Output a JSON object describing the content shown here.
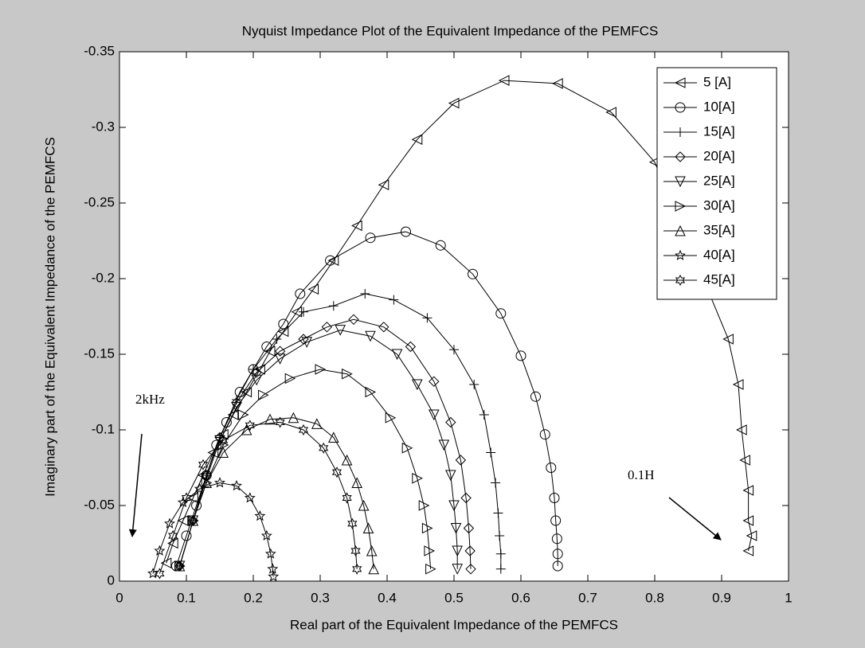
{
  "chart_data": {
    "type": "line",
    "title": "Nyquist Impedance Plot of the Equivalent Impedance of the PEMFCS",
    "x_label": "Real part of the Equivalent Impedance of the PEMFCS",
    "y_label": "Imaginary part of the Equivalent Impedance of the PEMFCS",
    "xlim": [
      0,
      1
    ],
    "ylim": [
      0,
      -0.35
    ],
    "xticks": [
      0,
      0.1,
      0.2,
      0.3,
      0.4,
      0.5,
      0.6,
      0.7,
      0.8,
      0.9,
      1
    ],
    "yticks": [
      0,
      -0.05,
      -0.1,
      -0.15,
      -0.2,
      -0.25,
      -0.3,
      -0.35
    ],
    "grid": false,
    "legend": "upper right",
    "annotations": [
      "2kHz",
      "0.1H"
    ],
    "series": [
      {
        "name": "5 [A]",
        "color": "#000000",
        "marker": "<",
        "x": [
          0.07,
          0.08,
          0.095,
          0.11,
          0.125,
          0.14,
          0.155,
          0.17,
          0.19,
          0.21,
          0.225,
          0.245,
          0.265,
          0.29,
          0.32,
          0.355,
          0.395,
          0.445,
          0.5,
          0.575,
          0.655,
          0.735,
          0.8,
          0.91,
          0.925,
          0.93,
          0.935,
          0.94,
          0.94,
          0.945,
          0.94
        ],
        "values": [
          -0.012,
          -0.025,
          -0.04,
          -0.055,
          -0.07,
          -0.085,
          -0.097,
          -0.11,
          -0.125,
          -0.14,
          -0.152,
          -0.165,
          -0.178,
          -0.193,
          -0.212,
          -0.235,
          -0.262,
          -0.292,
          -0.316,
          -0.331,
          -0.329,
          -0.31,
          -0.277,
          -0.16,
          -0.13,
          -0.1,
          -0.08,
          -0.06,
          -0.04,
          -0.03,
          -0.02
        ]
      },
      {
        "name": "10[A]",
        "color": "#000000",
        "marker": "o",
        "x": [
          0.085,
          0.1,
          0.115,
          0.13,
          0.145,
          0.16,
          0.18,
          0.2,
          0.22,
          0.245,
          0.27,
          0.315,
          0.375,
          0.428,
          0.48,
          0.528,
          0.57,
          0.6,
          0.622,
          0.636,
          0.645,
          0.65,
          0.652,
          0.654,
          0.655,
          0.655
        ],
        "values": [
          -0.01,
          -0.03,
          -0.05,
          -0.07,
          -0.09,
          -0.105,
          -0.125,
          -0.14,
          -0.155,
          -0.17,
          -0.19,
          -0.212,
          -0.227,
          -0.231,
          -0.222,
          -0.203,
          -0.177,
          -0.149,
          -0.122,
          -0.097,
          -0.075,
          -0.055,
          -0.04,
          -0.028,
          -0.018,
          -0.01
        ]
      },
      {
        "name": "15[A]",
        "color": "#000000",
        "marker": "+",
        "x": [
          0.09,
          0.11,
          0.13,
          0.15,
          0.175,
          0.2,
          0.235,
          0.275,
          0.32,
          0.367,
          0.41,
          0.46,
          0.5,
          0.53,
          0.545,
          0.555,
          0.562,
          0.566,
          0.568,
          0.57,
          0.57
        ],
        "values": [
          -0.01,
          -0.04,
          -0.07,
          -0.095,
          -0.12,
          -0.14,
          -0.16,
          -0.178,
          -0.182,
          -0.19,
          -0.186,
          -0.174,
          -0.153,
          -0.13,
          -0.11,
          -0.085,
          -0.065,
          -0.045,
          -0.03,
          -0.018,
          -0.008
        ]
      },
      {
        "name": "20[A]",
        "color": "#000000",
        "marker": "d",
        "x": [
          0.09,
          0.11,
          0.13,
          0.15,
          0.175,
          0.205,
          0.24,
          0.275,
          0.31,
          0.35,
          0.395,
          0.435,
          0.47,
          0.495,
          0.51,
          0.518,
          0.522,
          0.524,
          0.525
        ],
        "values": [
          -0.01,
          -0.04,
          -0.07,
          -0.095,
          -0.118,
          -0.138,
          -0.152,
          -0.16,
          -0.168,
          -0.173,
          -0.168,
          -0.155,
          -0.132,
          -0.105,
          -0.08,
          -0.055,
          -0.035,
          -0.02,
          -0.008
        ]
      },
      {
        "name": "25[A]",
        "color": "#000000",
        "marker": "v",
        "x": [
          0.09,
          0.11,
          0.13,
          0.15,
          0.175,
          0.205,
          0.24,
          0.28,
          0.33,
          0.375,
          0.415,
          0.445,
          0.47,
          0.485,
          0.495,
          0.5,
          0.503,
          0.505,
          0.505
        ],
        "values": [
          -0.01,
          -0.04,
          -0.068,
          -0.093,
          -0.115,
          -0.133,
          -0.147,
          -0.158,
          -0.166,
          -0.162,
          -0.15,
          -0.13,
          -0.11,
          -0.09,
          -0.07,
          -0.05,
          -0.035,
          -0.02,
          -0.008
        ]
      },
      {
        "name": "30[A]",
        "color": "#000000",
        "marker": ">",
        "x": [
          0.09,
          0.11,
          0.13,
          0.155,
          0.185,
          0.215,
          0.255,
          0.3,
          0.34,
          0.375,
          0.405,
          0.43,
          0.445,
          0.455,
          0.46,
          0.463,
          0.465
        ],
        "values": [
          -0.01,
          -0.04,
          -0.065,
          -0.09,
          -0.11,
          -0.123,
          -0.134,
          -0.14,
          -0.137,
          -0.125,
          -0.108,
          -0.088,
          -0.068,
          -0.05,
          -0.035,
          -0.02,
          -0.008
        ]
      },
      {
        "name": "35[A]",
        "color": "#000000",
        "marker": "^",
        "x": [
          0.09,
          0.11,
          0.13,
          0.155,
          0.19,
          0.225,
          0.26,
          0.295,
          0.32,
          0.34,
          0.355,
          0.365,
          0.372,
          0.377,
          0.38
        ],
        "values": [
          -0.01,
          -0.04,
          -0.065,
          -0.085,
          -0.1,
          -0.107,
          -0.108,
          -0.104,
          -0.095,
          -0.08,
          -0.065,
          -0.05,
          -0.035,
          -0.02,
          -0.008
        ]
      },
      {
        "name": "40[A]",
        "color": "#000000",
        "marker": "p",
        "x": [
          0.05,
          0.06,
          0.075,
          0.095,
          0.12,
          0.15,
          0.175,
          0.195,
          0.21,
          0.22,
          0.226,
          0.229,
          0.23
        ],
        "values": [
          -0.005,
          -0.02,
          -0.038,
          -0.052,
          -0.061,
          -0.065,
          -0.063,
          -0.055,
          -0.043,
          -0.03,
          -0.018,
          -0.008,
          -0.003
        ]
      },
      {
        "name": "45[A]",
        "color": "#000000",
        "marker": "h",
        "x": [
          0.06,
          0.08,
          0.1,
          0.125,
          0.155,
          0.195,
          0.24,
          0.275,
          0.305,
          0.325,
          0.34,
          0.348,
          0.353,
          0.355
        ],
        "values": [
          -0.005,
          -0.03,
          -0.055,
          -0.077,
          -0.093,
          -0.103,
          -0.105,
          -0.1,
          -0.088,
          -0.072,
          -0.055,
          -0.038,
          -0.02,
          -0.008
        ]
      }
    ]
  }
}
